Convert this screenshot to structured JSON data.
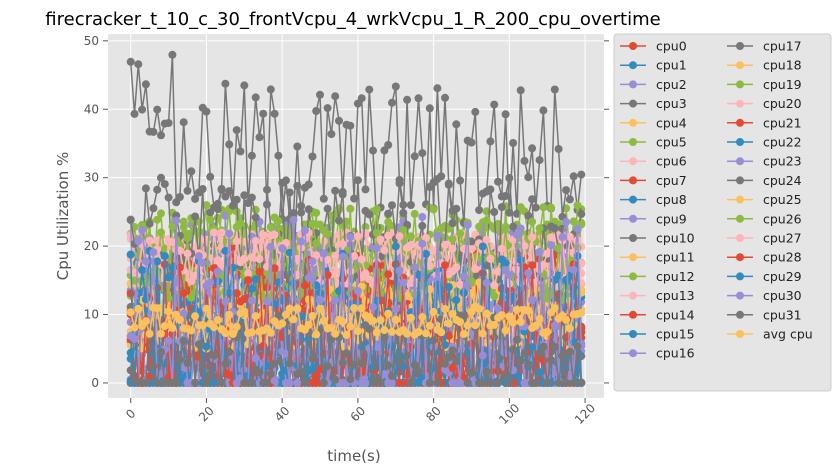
{
  "chart_data": {
    "type": "line",
    "title": "firecracker_t_10_c_30_frontVcpu_4_wrkVcpu_1_R_200_cpu_overtime",
    "xlabel": "time(s)",
    "ylabel": "Cpu Utilization %",
    "xlim": [
      -6,
      125
    ],
    "ylim": [
      -2.2,
      51
    ],
    "xticks": [
      0,
      20,
      40,
      60,
      80,
      100,
      120
    ],
    "yticks": [
      0,
      10,
      20,
      30,
      40,
      50
    ],
    "grid": true,
    "legend_position": "outside-right",
    "legend_columns": 2,
    "n_points": 120,
    "series": [
      {
        "name": "cpu0",
        "color": "#E24A33",
        "band": [
          0,
          20
        ]
      },
      {
        "name": "cpu1",
        "color": "#348ABD",
        "band": [
          0,
          18
        ]
      },
      {
        "name": "cpu2",
        "color": "#988ED5",
        "band": [
          0,
          22
        ]
      },
      {
        "name": "cpu3",
        "color": "#777777",
        "band": [
          0,
          12
        ]
      },
      {
        "name": "cpu4",
        "color": "#FBC15E",
        "band": [
          5,
          18
        ]
      },
      {
        "name": "cpu5",
        "color": "#8EBA42",
        "band": [
          10,
          24
        ]
      },
      {
        "name": "cpu6",
        "color": "#FFB5B8",
        "band": [
          14,
          22
        ]
      },
      {
        "name": "cpu7",
        "color": "#E24A33",
        "band": [
          0,
          16
        ]
      },
      {
        "name": "cpu8",
        "color": "#348ABD",
        "band": [
          0,
          18
        ]
      },
      {
        "name": "cpu9",
        "color": "#988ED5",
        "band": [
          0,
          24
        ]
      },
      {
        "name": "cpu10",
        "color": "#777777",
        "band": [
          0,
          10
        ]
      },
      {
        "name": "cpu11",
        "color": "#FBC15E",
        "band": [
          5,
          16
        ]
      },
      {
        "name": "cpu12",
        "color": "#8EBA42",
        "band": [
          12,
          26
        ]
      },
      {
        "name": "cpu13",
        "color": "#FFB5B8",
        "band": [
          14,
          22
        ]
      },
      {
        "name": "cpu14",
        "color": "#E24A33",
        "band": [
          0,
          18
        ]
      },
      {
        "name": "cpu15",
        "color": "#348ABD",
        "band": [
          0,
          20
        ]
      },
      {
        "name": "cpu16",
        "color": "#988ED5",
        "band": [
          0,
          25
        ]
      },
      {
        "name": "cpu17",
        "color": "#777777",
        "band": [
          22,
          44
        ]
      },
      {
        "name": "cpu18",
        "color": "#FBC15E",
        "band": [
          5,
          15
        ]
      },
      {
        "name": "cpu19",
        "color": "#8EBA42",
        "band": [
          12,
          26
        ]
      },
      {
        "name": "cpu20",
        "color": "#FFB5B8",
        "band": [
          14,
          22
        ]
      },
      {
        "name": "cpu21",
        "color": "#E24A33",
        "band": [
          0,
          20
        ]
      },
      {
        "name": "cpu22",
        "color": "#348ABD",
        "band": [
          0,
          18
        ]
      },
      {
        "name": "cpu23",
        "color": "#988ED5",
        "band": [
          0,
          22
        ]
      },
      {
        "name": "cpu24",
        "color": "#777777",
        "band": [
          15,
          30
        ]
      },
      {
        "name": "cpu25",
        "color": "#FBC15E",
        "band": [
          5,
          15
        ]
      },
      {
        "name": "cpu26",
        "color": "#8EBA42",
        "band": [
          12,
          24
        ]
      },
      {
        "name": "cpu27",
        "color": "#FFB5B8",
        "band": [
          14,
          22
        ]
      },
      {
        "name": "cpu28",
        "color": "#E24A33",
        "band": [
          0,
          18
        ]
      },
      {
        "name": "cpu29",
        "color": "#348ABD",
        "band": [
          0,
          20
        ]
      },
      {
        "name": "cpu30",
        "color": "#988ED5",
        "band": [
          0,
          24
        ]
      },
      {
        "name": "cpu31",
        "color": "#777777",
        "band": [
          0,
          10
        ]
      },
      {
        "name": "avg cpu",
        "color": "#FBC15E",
        "band": [
          7,
          11
        ]
      }
    ]
  }
}
